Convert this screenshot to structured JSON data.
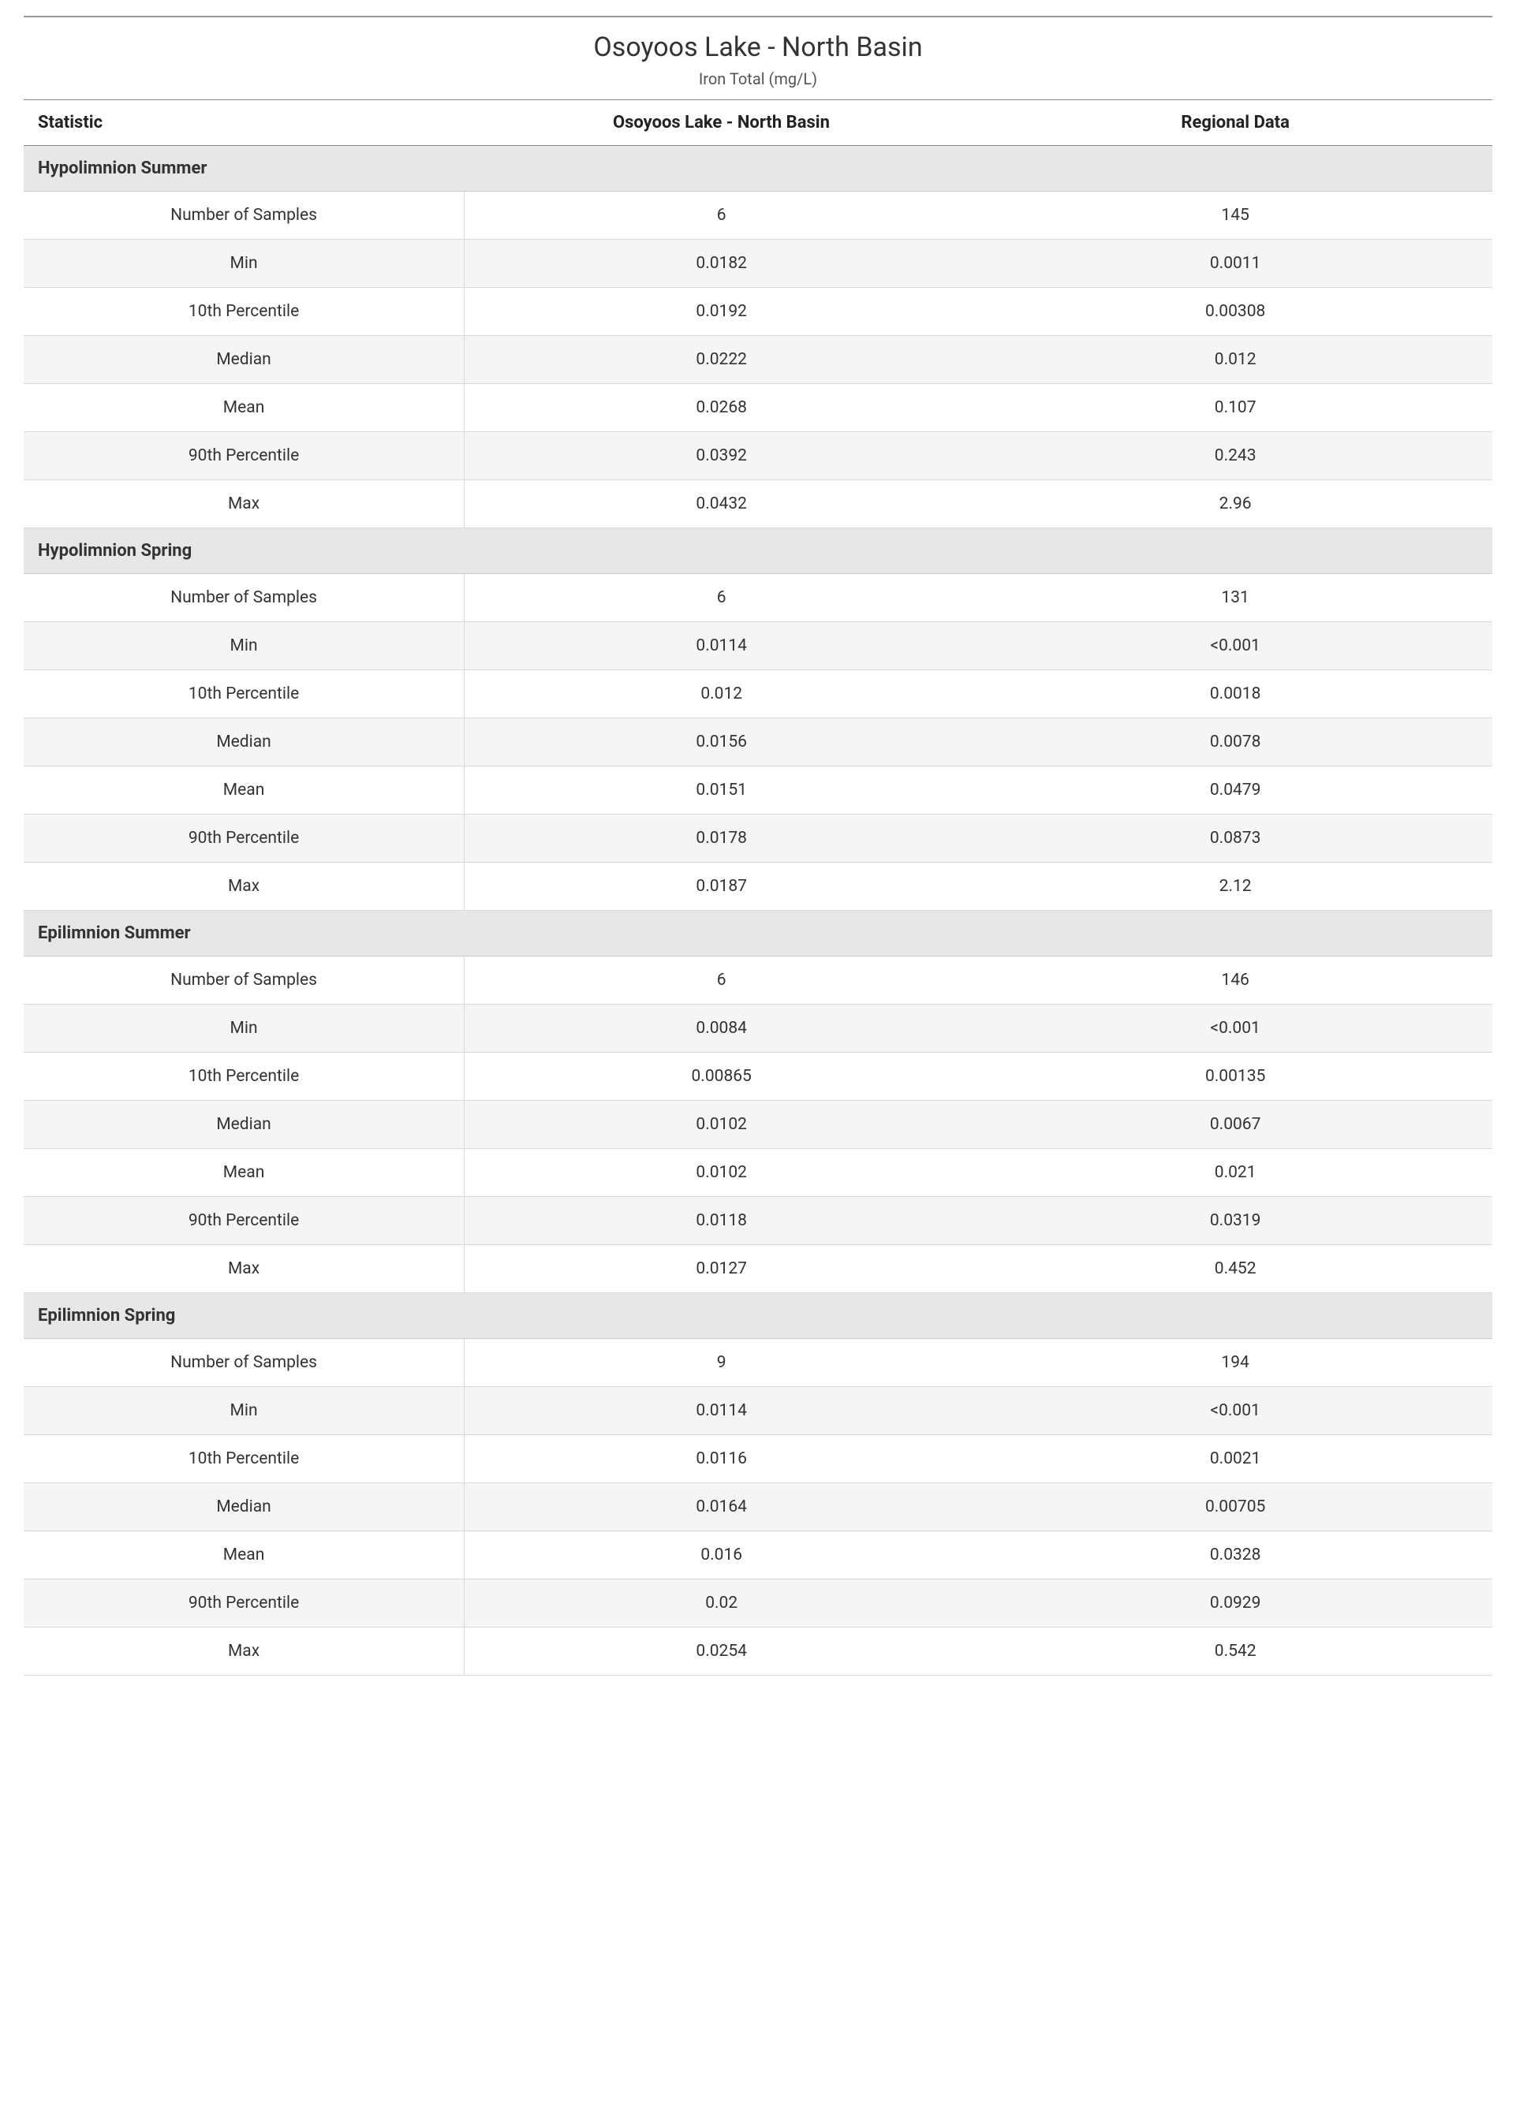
{
  "report": {
    "title": "Osoyoos Lake - North Basin",
    "subtitle": "Iron Total (mg/L)",
    "columns": {
      "statistic": "Statistic",
      "site": "Osoyoos Lake - North Basin",
      "regional": "Regional Data"
    },
    "styling": {
      "header_bg": "#ffffff",
      "section_bg": "#e7e7e7",
      "row_alt_bg": "#f5f5f5",
      "border_color": "#d9d9d9",
      "top_border_color": "#999999",
      "text_color": "#333333",
      "title_fontsize": 34,
      "subtitle_fontsize": 20,
      "header_fontsize": 22,
      "section_fontsize": 22,
      "cell_fontsize": 21,
      "font_family": "Segoe UI"
    },
    "sections": [
      {
        "name": "Hypolimnion Summer",
        "rows": [
          {
            "stat": "Number of Samples",
            "site": "6",
            "regional": "145"
          },
          {
            "stat": "Min",
            "site": "0.0182",
            "regional": "0.0011"
          },
          {
            "stat": "10th Percentile",
            "site": "0.0192",
            "regional": "0.00308"
          },
          {
            "stat": "Median",
            "site": "0.0222",
            "regional": "0.012"
          },
          {
            "stat": "Mean",
            "site": "0.0268",
            "regional": "0.107"
          },
          {
            "stat": "90th Percentile",
            "site": "0.0392",
            "regional": "0.243"
          },
          {
            "stat": "Max",
            "site": "0.0432",
            "regional": "2.96"
          }
        ]
      },
      {
        "name": "Hypolimnion Spring",
        "rows": [
          {
            "stat": "Number of Samples",
            "site": "6",
            "regional": "131"
          },
          {
            "stat": "Min",
            "site": "0.0114",
            "regional": "<0.001"
          },
          {
            "stat": "10th Percentile",
            "site": "0.012",
            "regional": "0.0018"
          },
          {
            "stat": "Median",
            "site": "0.0156",
            "regional": "0.0078"
          },
          {
            "stat": "Mean",
            "site": "0.0151",
            "regional": "0.0479"
          },
          {
            "stat": "90th Percentile",
            "site": "0.0178",
            "regional": "0.0873"
          },
          {
            "stat": "Max",
            "site": "0.0187",
            "regional": "2.12"
          }
        ]
      },
      {
        "name": "Epilimnion Summer",
        "rows": [
          {
            "stat": "Number of Samples",
            "site": "6",
            "regional": "146"
          },
          {
            "stat": "Min",
            "site": "0.0084",
            "regional": "<0.001"
          },
          {
            "stat": "10th Percentile",
            "site": "0.00865",
            "regional": "0.00135"
          },
          {
            "stat": "Median",
            "site": "0.0102",
            "regional": "0.0067"
          },
          {
            "stat": "Mean",
            "site": "0.0102",
            "regional": "0.021"
          },
          {
            "stat": "90th Percentile",
            "site": "0.0118",
            "regional": "0.0319"
          },
          {
            "stat": "Max",
            "site": "0.0127",
            "regional": "0.452"
          }
        ]
      },
      {
        "name": "Epilimnion Spring",
        "rows": [
          {
            "stat": "Number of Samples",
            "site": "9",
            "regional": "194"
          },
          {
            "stat": "Min",
            "site": "0.0114",
            "regional": "<0.001"
          },
          {
            "stat": "10th Percentile",
            "site": "0.0116",
            "regional": "0.0021"
          },
          {
            "stat": "Median",
            "site": "0.0164",
            "regional": "0.00705"
          },
          {
            "stat": "Mean",
            "site": "0.016",
            "regional": "0.0328"
          },
          {
            "stat": "90th Percentile",
            "site": "0.02",
            "regional": "0.0929"
          },
          {
            "stat": "Max",
            "site": "0.0254",
            "regional": "0.542"
          }
        ]
      }
    ]
  }
}
